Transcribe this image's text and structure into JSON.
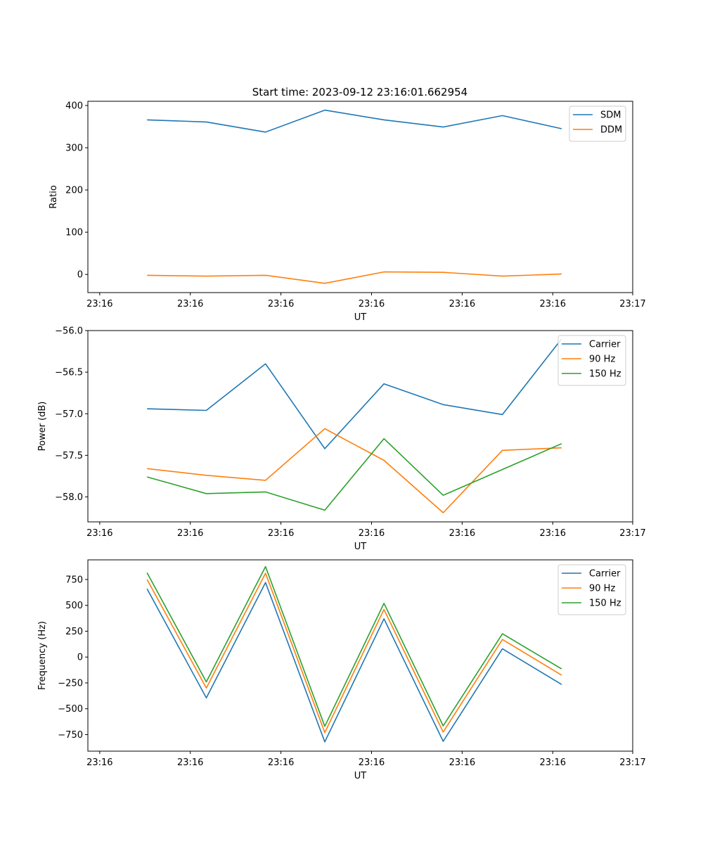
{
  "figure_title": "Start time: 2023-09-12 23:16:01.662954",
  "chart_data": [
    {
      "type": "line",
      "title": "Start time: 2023-09-12 23:16:01.662954",
      "xlabel": "UT",
      "ylabel": "Ratio",
      "x": [
        1,
        2,
        3,
        4,
        5,
        6,
        7,
        8
      ],
      "xlim": [
        0,
        9.2
      ],
      "ylim": [
        -43,
        410
      ],
      "xticks": [
        0.2,
        1.73,
        3.26,
        4.79,
        6.32,
        7.85,
        9.2
      ],
      "xtick_labels": [
        "23:16",
        "23:16",
        "23:16",
        "23:16",
        "23:16",
        "23:16",
        "23:17"
      ],
      "yticks": [
        0,
        100,
        200,
        300,
        400
      ],
      "ytick_labels": [
        "0",
        "100",
        "200",
        "300",
        "400"
      ],
      "legend": "top-right",
      "series": [
        {
          "name": "SDM",
          "color": "#1f77b4",
          "values": [
            366,
            361,
            337,
            389,
            366,
            349,
            376,
            345
          ]
        },
        {
          "name": "DDM",
          "color": "#ff7f0e",
          "values": [
            -2,
            -4,
            -2,
            -21,
            6,
            5,
            -4,
            1
          ]
        }
      ]
    },
    {
      "type": "line",
      "title": "",
      "xlabel": "UT",
      "ylabel": "Power (dB)",
      "x": [
        1,
        2,
        3,
        4,
        5,
        6,
        7,
        8
      ],
      "xlim": [
        0,
        9.2
      ],
      "ylim": [
        -58.3,
        -56.0
      ],
      "xticks": [
        0.2,
        1.73,
        3.26,
        4.79,
        6.32,
        7.85,
        9.2
      ],
      "xtick_labels": [
        "23:16",
        "23:16",
        "23:16",
        "23:16",
        "23:16",
        "23:16",
        "23:17"
      ],
      "yticks": [
        -58.0,
        -57.5,
        -57.0,
        -56.5,
        -56.0
      ],
      "ytick_labels": [
        "−58.0",
        "−57.5",
        "−57.0",
        "−56.5",
        "−56.0"
      ],
      "legend": "top-right",
      "series": [
        {
          "name": "Carrier",
          "color": "#1f77b4",
          "values": [
            -56.94,
            -56.96,
            -56.4,
            -57.42,
            -56.64,
            -56.89,
            -57.01,
            -56.1
          ]
        },
        {
          "name": "90 Hz",
          "color": "#ff7f0e",
          "values": [
            -57.66,
            -57.74,
            -57.8,
            -57.18,
            -57.56,
            -58.19,
            -57.44,
            -57.41
          ]
        },
        {
          "name": "150 Hz",
          "color": "#2ca02c",
          "values": [
            -57.76,
            -57.96,
            -57.94,
            -58.16,
            -57.3,
            -57.98,
            -57.67,
            -57.36
          ]
        }
      ]
    },
    {
      "type": "line",
      "title": "",
      "xlabel": "UT",
      "ylabel": "Frequency (Hz)",
      "x": [
        1,
        2,
        3,
        4,
        5,
        6,
        7,
        8
      ],
      "xlim": [
        0,
        9.2
      ],
      "ylim": [
        -910,
        940
      ],
      "xticks": [
        0.2,
        1.73,
        3.26,
        4.79,
        6.32,
        7.85,
        9.2
      ],
      "xtick_labels": [
        "23:16",
        "23:16",
        "23:16",
        "23:16",
        "23:16",
        "23:16",
        "23:17"
      ],
      "yticks": [
        -750,
        -500,
        -250,
        0,
        250,
        500,
        750
      ],
      "ytick_labels": [
        "−750",
        "−500",
        "−250",
        "0",
        "250",
        "500",
        "750"
      ],
      "legend": "top-right",
      "series": [
        {
          "name": "Carrier",
          "color": "#1f77b4",
          "values": [
            660,
            -395,
            720,
            -820,
            370,
            -815,
            80,
            -265
          ]
        },
        {
          "name": "90 Hz",
          "color": "#ff7f0e",
          "values": [
            750,
            -300,
            810,
            -730,
            460,
            -725,
            170,
            -175
          ]
        },
        {
          "name": "150 Hz",
          "color": "#2ca02c",
          "values": [
            815,
            -240,
            875,
            -670,
            520,
            -665,
            225,
            -115
          ]
        }
      ]
    }
  ]
}
